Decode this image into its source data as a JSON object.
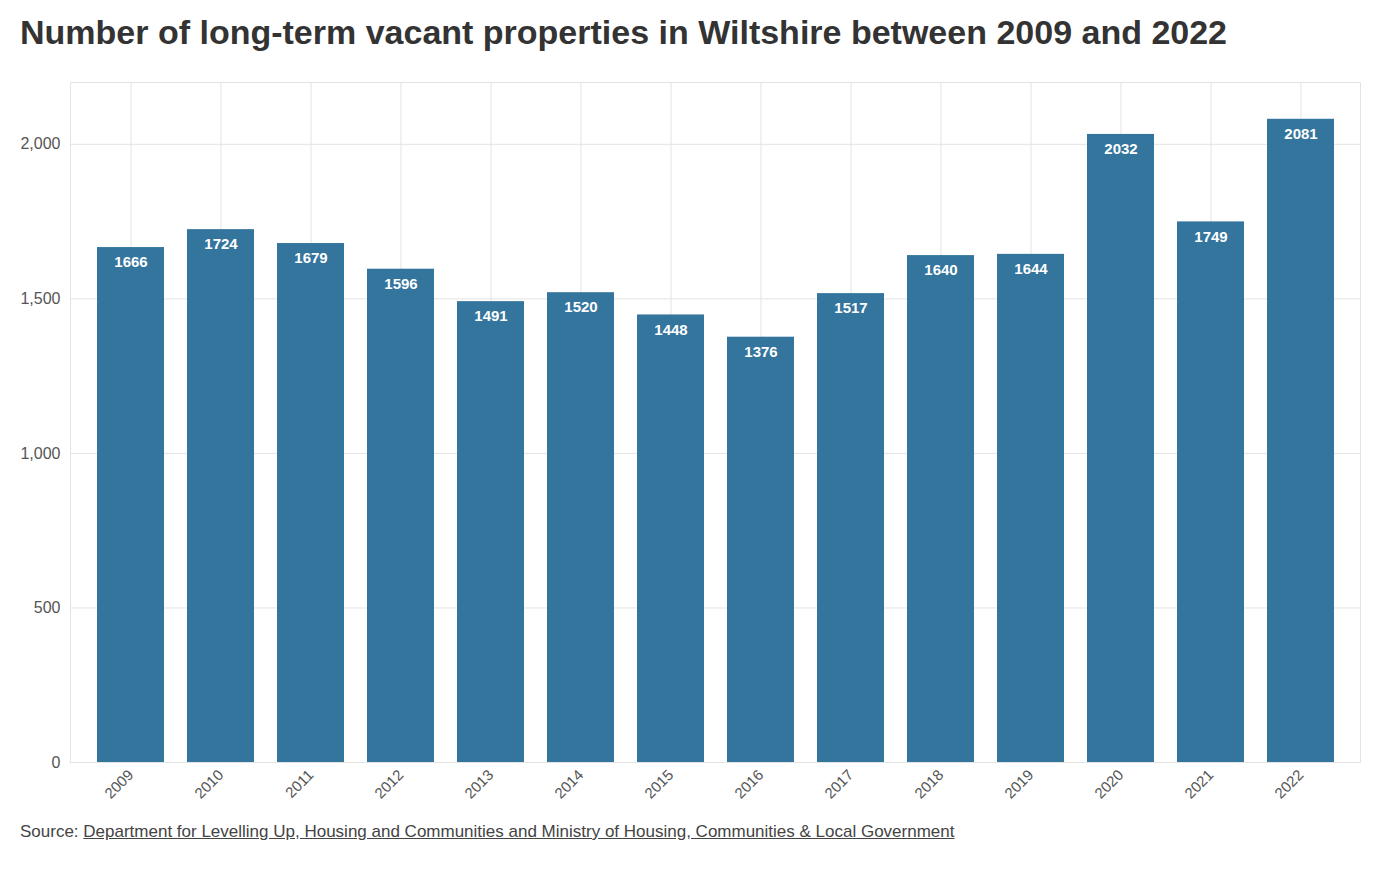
{
  "chart_data": {
    "type": "bar",
    "title": "Number of long-term vacant properties in Wiltshire between 2009 and 2022",
    "categories": [
      "2009",
      "2010",
      "2011",
      "2012",
      "2013",
      "2014",
      "2015",
      "2016",
      "2017",
      "2018",
      "2019",
      "2020",
      "2021",
      "2022"
    ],
    "values": [
      1666,
      1724,
      1679,
      1596,
      1491,
      1520,
      1448,
      1376,
      1517,
      1640,
      1644,
      2032,
      1749,
      2081
    ],
    "color": "#34759d",
    "ylim": [
      0,
      2200
    ],
    "yticks": [
      0,
      500,
      1000,
      1500,
      2000
    ],
    "grid": true,
    "data_labels": true,
    "source": {
      "label": "Source:",
      "text": "Department for Levelling Up, Housing and Communities and Ministry of Housing, Communities & Local Government"
    }
  }
}
